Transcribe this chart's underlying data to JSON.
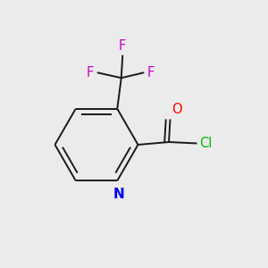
{
  "background_color": "#ebebeb",
  "bond_color": "#1a1a1a",
  "atom_colors": {
    "N": "#0000ee",
    "O": "#ff0000",
    "Cl": "#00bb00",
    "F": "#cc00cc"
  },
  "font_size": 10.5,
  "lw": 1.4
}
